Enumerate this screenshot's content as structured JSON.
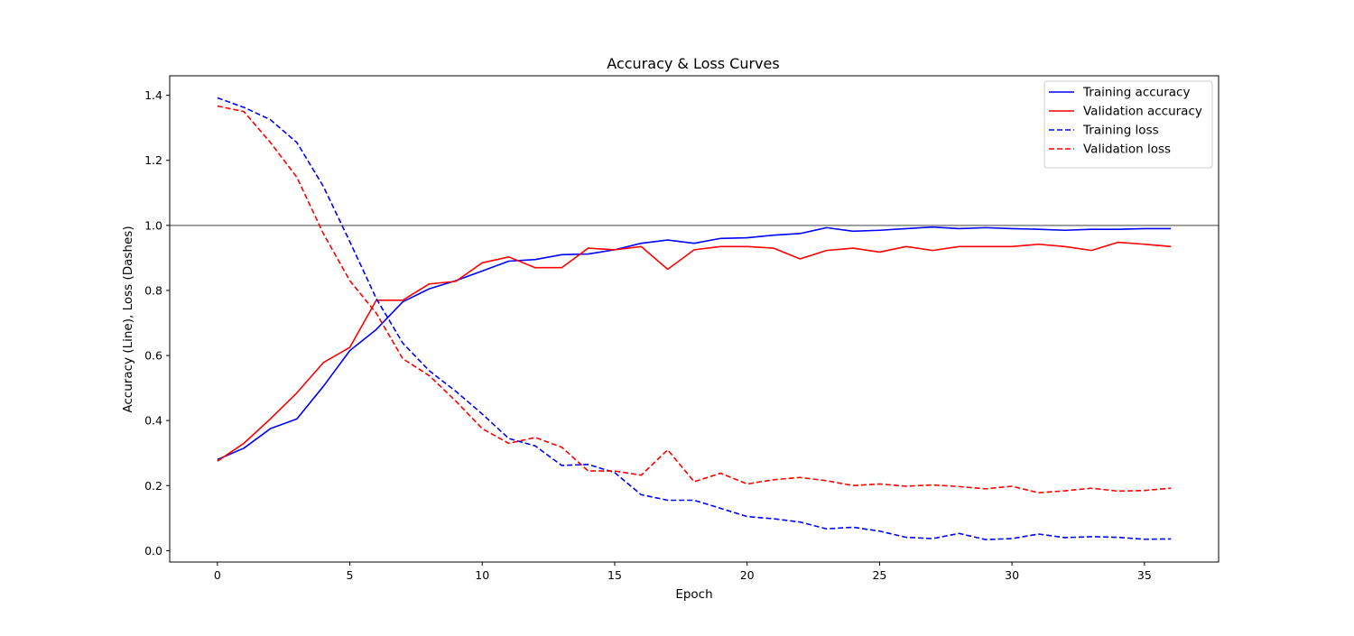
{
  "chart_data": {
    "type": "line",
    "title": "Accuracy & Loss Curves",
    "xlabel": "Epoch",
    "ylabel": "Accuracy (Line), Loss (Dashes)",
    "xlim": [
      -1.8,
      37.8
    ],
    "ylim": [
      -0.035,
      1.46
    ],
    "xticks": [
      0,
      5,
      10,
      15,
      20,
      25,
      30,
      35
    ],
    "yticks": [
      0.0,
      0.2,
      0.4,
      0.6,
      0.8,
      1.0,
      1.2,
      1.4
    ],
    "grid": false,
    "legend": "top-right",
    "reference_line": {
      "y": 1.0,
      "color": "#808080"
    },
    "x": [
      0,
      1,
      2,
      3,
      4,
      5,
      6,
      7,
      8,
      9,
      10,
      11,
      12,
      13,
      14,
      15,
      16,
      17,
      18,
      19,
      20,
      21,
      22,
      23,
      24,
      25,
      26,
      27,
      28,
      29,
      30,
      31,
      32,
      33,
      34,
      35,
      36
    ],
    "series": [
      {
        "name": "Training accuracy",
        "color": "#0000ff",
        "style": "solid",
        "values": [
          0.28,
          0.315,
          0.375,
          0.405,
          0.505,
          0.615,
          0.68,
          0.765,
          0.805,
          0.83,
          0.86,
          0.89,
          0.895,
          0.91,
          0.912,
          0.925,
          0.945,
          0.955,
          0.945,
          0.96,
          0.962,
          0.97,
          0.975,
          0.993,
          0.982,
          0.985,
          0.99,
          0.995,
          0.99,
          0.993,
          0.99,
          0.988,
          0.985,
          0.988,
          0.988,
          0.99,
          0.99
        ]
      },
      {
        "name": "Validation accuracy",
        "color": "#ff0000",
        "style": "solid",
        "values": [
          0.275,
          0.33,
          0.405,
          0.485,
          0.578,
          0.625,
          0.77,
          0.77,
          0.82,
          0.828,
          0.885,
          0.903,
          0.87,
          0.87,
          0.93,
          0.925,
          0.935,
          0.865,
          0.925,
          0.935,
          0.935,
          0.93,
          0.897,
          0.923,
          0.93,
          0.918,
          0.935,
          0.923,
          0.935,
          0.935,
          0.935,
          0.942,
          0.935,
          0.923,
          0.948,
          0.942,
          0.935
        ]
      },
      {
        "name": "Training loss",
        "color": "#0000ff",
        "style": "dashed",
        "values": [
          1.392,
          1.363,
          1.325,
          1.255,
          1.12,
          0.95,
          0.775,
          0.638,
          0.553,
          0.49,
          0.42,
          0.345,
          0.322,
          0.262,
          0.265,
          0.24,
          0.172,
          0.155,
          0.155,
          0.13,
          0.105,
          0.098,
          0.088,
          0.067,
          0.072,
          0.06,
          0.041,
          0.037,
          0.053,
          0.034,
          0.037,
          0.051,
          0.04,
          0.043,
          0.041,
          0.035,
          0.036
        ]
      },
      {
        "name": "Validation loss",
        "color": "#ff0000",
        "style": "dashed",
        "values": [
          1.367,
          1.35,
          1.255,
          1.148,
          0.975,
          0.83,
          0.73,
          0.59,
          0.538,
          0.46,
          0.375,
          0.33,
          0.348,
          0.318,
          0.245,
          0.245,
          0.232,
          0.31,
          0.212,
          0.238,
          0.205,
          0.218,
          0.225,
          0.215,
          0.2,
          0.205,
          0.198,
          0.202,
          0.197,
          0.19,
          0.198,
          0.178,
          0.184,
          0.192,
          0.183,
          0.185,
          0.192
        ]
      }
    ]
  }
}
